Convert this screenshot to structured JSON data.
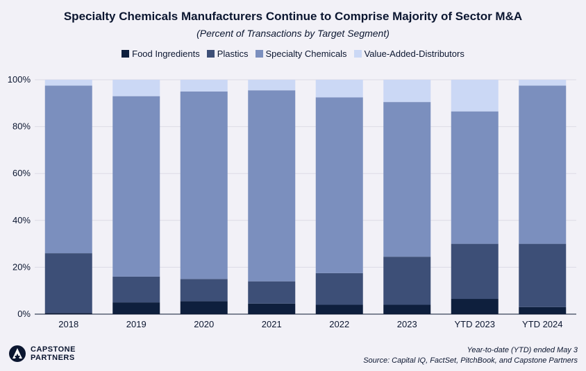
{
  "chart_data": {
    "type": "bar",
    "stacked": true,
    "title": "Specialty Chemicals Manufacturers Continue to Comprise Majority of Sector M&A",
    "subtitle": "(Percent of Transactions by Target Segment)",
    "categories": [
      "2018",
      "2019",
      "2020",
      "2021",
      "2022",
      "2023",
      "YTD 2023",
      "YTD 2024"
    ],
    "series": [
      {
        "name": "Food Ingredients",
        "color": "#0e1f3d",
        "values": [
          0.5,
          5,
          5.5,
          4.5,
          4,
          4,
          6.5,
          3
        ]
      },
      {
        "name": "Plastics",
        "color": "#3d4f77",
        "values": [
          25.5,
          11,
          9.5,
          9.5,
          13.5,
          20.5,
          23.5,
          27
        ]
      },
      {
        "name": "Specialty Chemicals",
        "color": "#7b8fbe",
        "values": [
          71.5,
          77,
          80,
          81.5,
          75,
          66,
          56.5,
          67.5
        ]
      },
      {
        "name": "Value-Added-Distributors",
        "color": "#cbd8f5",
        "values": [
          2.5,
          7,
          5,
          4.5,
          7.5,
          9.5,
          13.5,
          2.5
        ]
      }
    ],
    "ylim": [
      0,
      100
    ],
    "yticks": [
      "0%",
      "20%",
      "40%",
      "60%",
      "80%",
      "100%"
    ],
    "xlabel": "",
    "ylabel": ""
  },
  "logo": {
    "line1": "CAPSTONE",
    "line2": "PARTNERS"
  },
  "footnote": {
    "line1": "Year-to-date (YTD) ended May 3",
    "line2": "Source: Capital IQ, FactSet, PitchBook, and Capstone Partners"
  }
}
